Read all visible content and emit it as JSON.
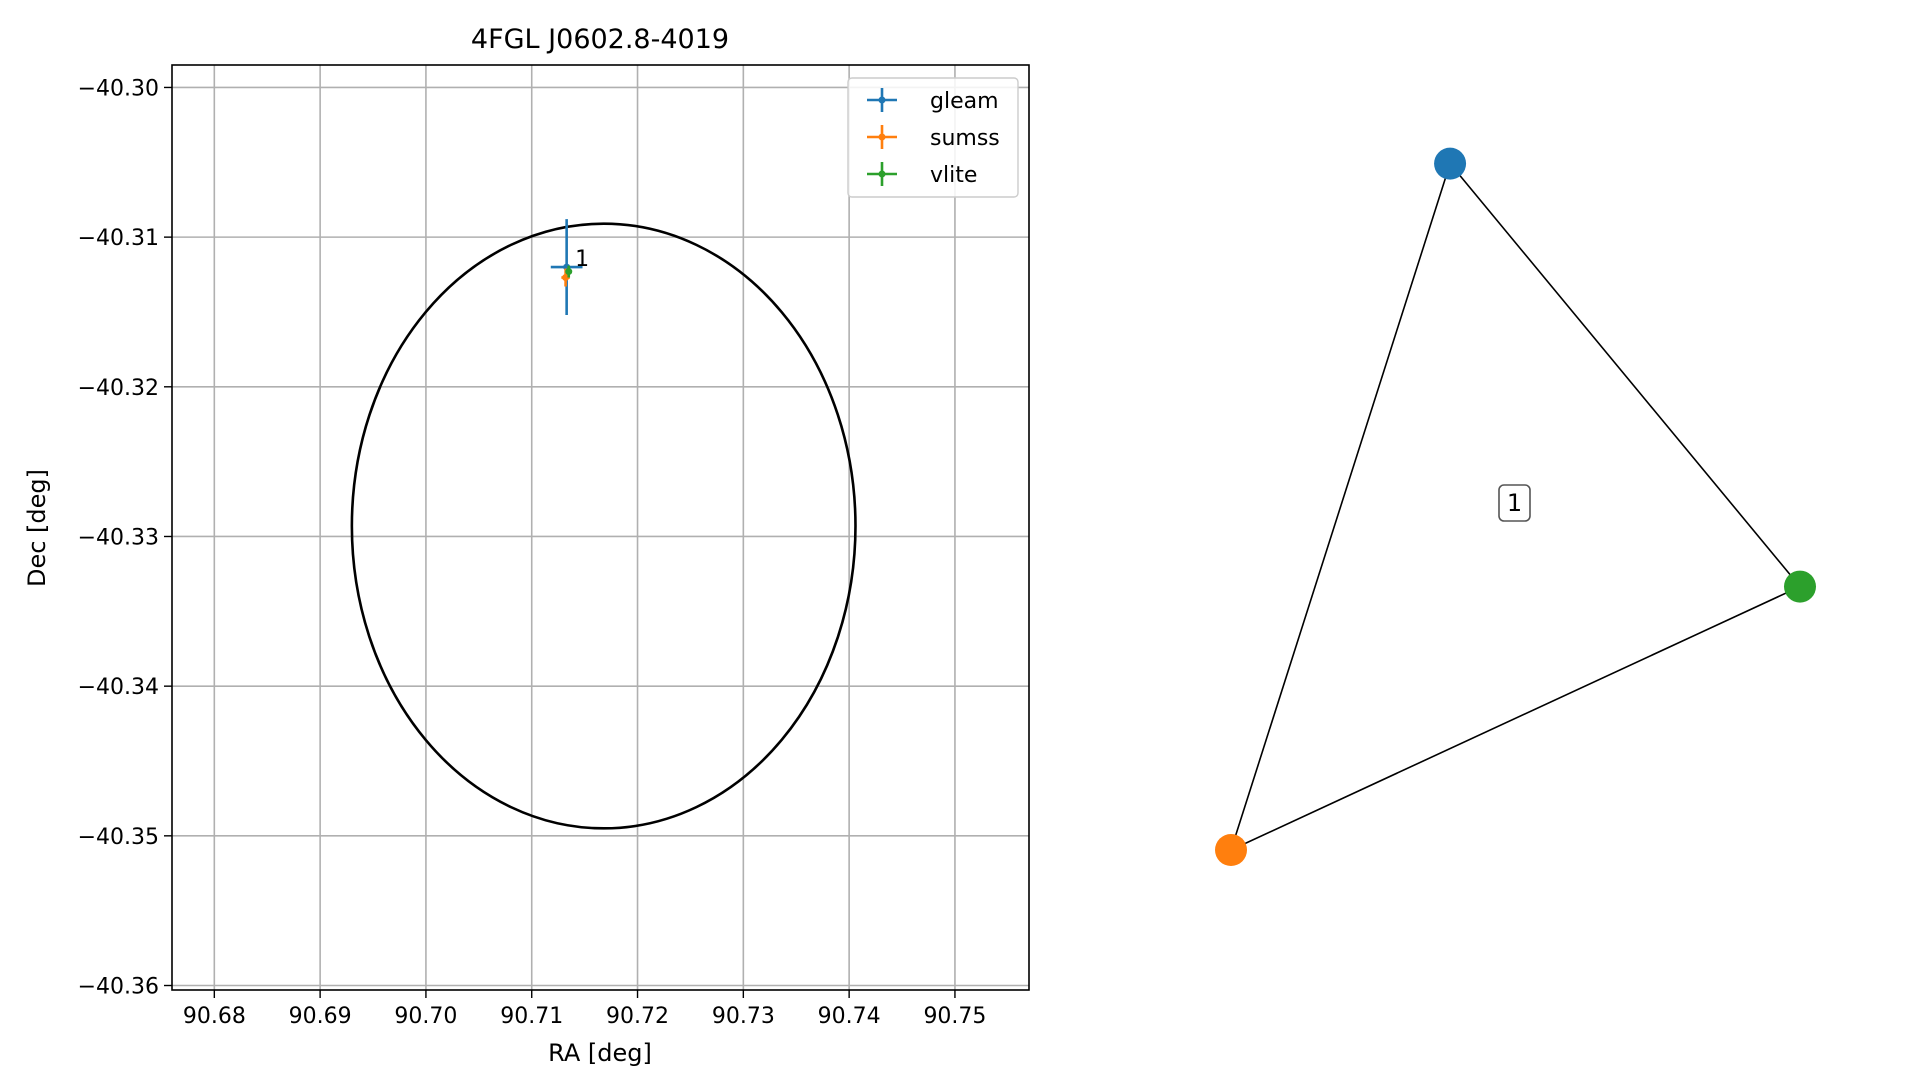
{
  "chart_data": [
    {
      "type": "scatter",
      "title": "4FGL J0602.8-4019",
      "xlabel": "RA [deg]",
      "ylabel": "Dec [deg]",
      "xlim": [
        90.676,
        90.757
      ],
      "ylim": [
        -40.3603,
        -40.2985
      ],
      "xticks": [
        90.68,
        90.69,
        90.7,
        90.71,
        90.72,
        90.73,
        90.74,
        90.75
      ],
      "xtick_labels": [
        "90.68",
        "90.69",
        "90.70",
        "90.71",
        "90.72",
        "90.73",
        "90.74",
        "90.75"
      ],
      "yticks": [
        -40.3,
        -40.31,
        -40.32,
        -40.33,
        -40.34,
        -40.35,
        -40.36
      ],
      "ytick_labels": [
        "−40.30",
        "−40.31",
        "−40.32",
        "−40.33",
        "−40.34",
        "−40.35",
        "−40.36"
      ],
      "grid": true,
      "legend_position": "top-right",
      "series": [
        {
          "name": "gleam",
          "color": "#1f77b4",
          "x": 90.7133,
          "y": -40.312,
          "xerr": 0.0015,
          "yerr": 0.0032
        },
        {
          "name": "sumss",
          "color": "#ff7f0e",
          "x": 90.7132,
          "y": -40.3127,
          "xerr": 0.0004,
          "yerr": 0.0006
        },
        {
          "name": "vlite",
          "color": "#2ca02c",
          "x": 90.7135,
          "y": -40.3123,
          "xerr": 0.0003,
          "yerr": 0.0004
        }
      ],
      "annotations": [
        {
          "text": "1",
          "x": 90.7141,
          "y": -40.3114
        }
      ],
      "ellipse": {
        "center": [
          90.7168,
          -40.3293
        ],
        "ra_semi_axis": 0.0238,
        "dec_semi_axis": 0.0202,
        "color": "#000000"
      }
    },
    {
      "type": "network",
      "nodes": [
        {
          "id": "gleam",
          "color": "#1f77b4",
          "x": 0.385,
          "y": 0.925
        },
        {
          "id": "sumss",
          "color": "#ff7f0e",
          "x": 0.0,
          "y": 0.0
        },
        {
          "id": "vlite",
          "color": "#2ca02c",
          "x": 1.0,
          "y": 0.355
        }
      ],
      "edges": [
        [
          "gleam",
          "sumss"
        ],
        [
          "gleam",
          "vlite"
        ],
        [
          "sumss",
          "vlite"
        ]
      ],
      "label": "1"
    }
  ]
}
